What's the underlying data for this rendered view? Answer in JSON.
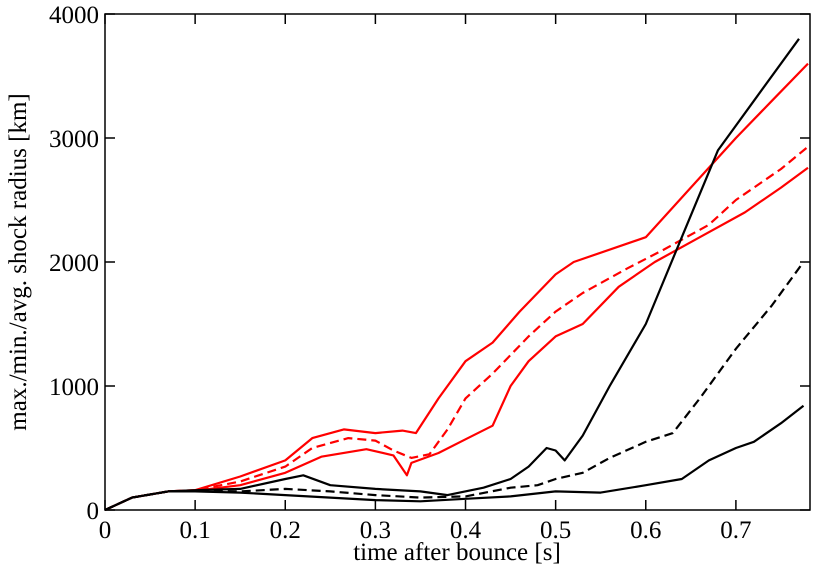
{
  "chart_data": {
    "type": "line",
    "xlabel": "time after bounce [s]",
    "ylabel": "max./min./avg. shock radius [km]",
    "xlim": [
      0,
      0.78
    ],
    "ylim": [
      0,
      4000
    ],
    "xticks": [
      0,
      0.1,
      0.2,
      0.3,
      0.4,
      0.5,
      0.6,
      0.7
    ],
    "yticks": [
      0,
      1000,
      2000,
      3000,
      4000
    ],
    "series": [
      {
        "color": "#ff0000",
        "dash": false,
        "x": [
          0,
          0.03,
          0.07,
          0.1,
          0.15,
          0.2,
          0.23,
          0.265,
          0.3,
          0.33,
          0.345,
          0.37,
          0.4,
          0.43,
          0.46,
          0.5,
          0.52,
          0.6,
          0.65,
          0.7,
          0.74,
          0.78
        ],
        "values": [
          0,
          100,
          150,
          160,
          270,
          400,
          580,
          650,
          620,
          640,
          620,
          900,
          1200,
          1350,
          1600,
          1900,
          2000,
          2200,
          2600,
          3000,
          3300,
          3600
        ]
      },
      {
        "color": "#ff0000",
        "dash": true,
        "x": [
          0,
          0.03,
          0.07,
          0.1,
          0.15,
          0.2,
          0.23,
          0.27,
          0.3,
          0.32,
          0.34,
          0.36,
          0.38,
          0.4,
          0.43,
          0.47,
          0.5,
          0.53,
          0.58,
          0.62,
          0.67,
          0.7,
          0.75,
          0.78
        ],
        "values": [
          0,
          100,
          150,
          160,
          230,
          350,
          500,
          580,
          560,
          480,
          420,
          450,
          650,
          900,
          1100,
          1400,
          1600,
          1750,
          1950,
          2100,
          2300,
          2500,
          2750,
          2930
        ]
      },
      {
        "color": "#ff0000",
        "dash": false,
        "x": [
          0,
          0.03,
          0.07,
          0.1,
          0.15,
          0.2,
          0.24,
          0.29,
          0.32,
          0.335,
          0.34,
          0.37,
          0.4,
          0.43,
          0.45,
          0.47,
          0.5,
          0.53,
          0.57,
          0.61,
          0.66,
          0.71,
          0.75,
          0.78
        ],
        "values": [
          0,
          100,
          150,
          155,
          200,
          300,
          430,
          490,
          440,
          280,
          380,
          460,
          570,
          680,
          1000,
          1200,
          1400,
          1500,
          1800,
          2000,
          2200,
          2400,
          2600,
          2760
        ]
      },
      {
        "color": "#000000",
        "dash": false,
        "x": [
          0,
          0.03,
          0.07,
          0.1,
          0.15,
          0.2,
          0.22,
          0.25,
          0.3,
          0.35,
          0.38,
          0.42,
          0.45,
          0.47,
          0.49,
          0.5,
          0.51,
          0.53,
          0.56,
          0.6,
          0.64,
          0.68,
          0.72,
          0.77
        ],
        "values": [
          0,
          100,
          150,
          160,
          170,
          250,
          280,
          200,
          170,
          150,
          120,
          180,
          250,
          350,
          500,
          480,
          400,
          600,
          1000,
          1500,
          2200,
          2900,
          3300,
          3800
        ]
      },
      {
        "color": "#000000",
        "dash": true,
        "x": [
          0,
          0.03,
          0.07,
          0.1,
          0.15,
          0.2,
          0.25,
          0.3,
          0.35,
          0.4,
          0.45,
          0.48,
          0.5,
          0.53,
          0.56,
          0.6,
          0.63,
          0.66,
          0.7,
          0.74,
          0.775
        ],
        "values": [
          0,
          100,
          150,
          155,
          150,
          170,
          150,
          120,
          100,
          110,
          180,
          200,
          250,
          300,
          420,
          550,
          620,
          900,
          1300,
          1650,
          2000
        ]
      },
      {
        "color": "#000000",
        "dash": false,
        "x": [
          0,
          0.03,
          0.07,
          0.1,
          0.15,
          0.2,
          0.25,
          0.3,
          0.35,
          0.4,
          0.45,
          0.5,
          0.55,
          0.6,
          0.64,
          0.67,
          0.7,
          0.72,
          0.75,
          0.775
        ],
        "values": [
          0,
          100,
          150,
          150,
          140,
          120,
          100,
          80,
          70,
          90,
          110,
          150,
          140,
          200,
          250,
          400,
          500,
          550,
          700,
          840
        ]
      }
    ]
  }
}
